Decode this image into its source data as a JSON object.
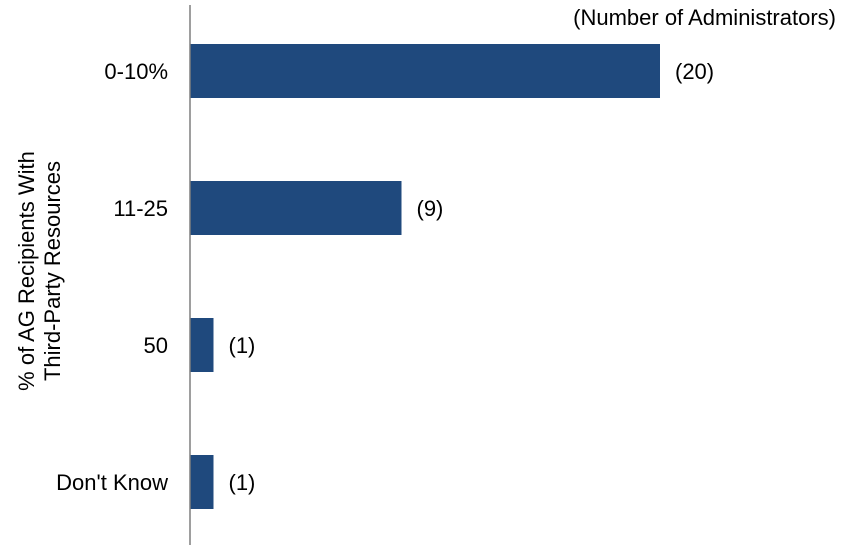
{
  "chart_data": {
    "type": "bar",
    "orientation": "horizontal",
    "units_label": "(Number of Administrators)",
    "ylabel_lines": [
      "% of AG Recipients With",
      "Third-Party Resources"
    ],
    "categories": [
      "0-10%",
      "11-25",
      "50",
      "Don't Know"
    ],
    "values": [
      20,
      9,
      1,
      1
    ],
    "data_labels": [
      "(20)",
      "(9)",
      "(1)",
      "(1)"
    ],
    "bar_color": "#1f497d",
    "xlim": [
      0,
      20
    ],
    "grid": false,
    "legend": "none"
  }
}
